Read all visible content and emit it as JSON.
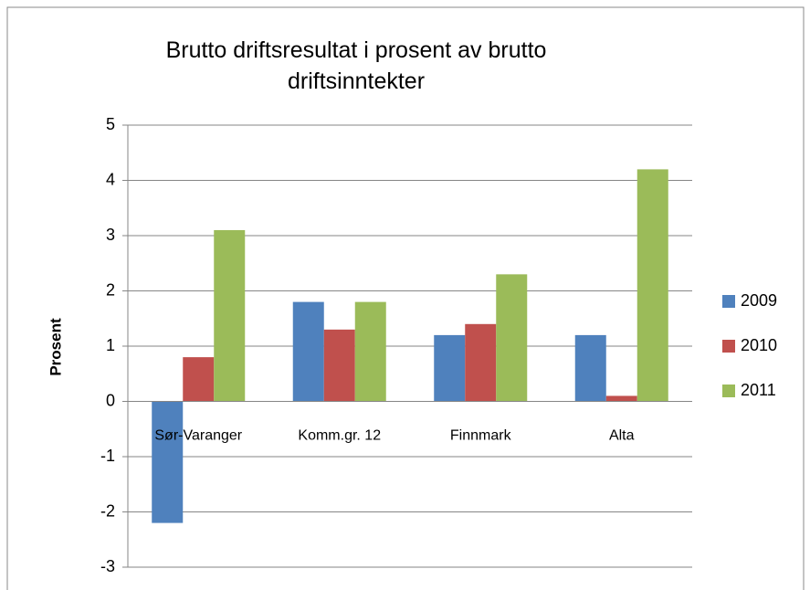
{
  "chart_data": {
    "type": "bar",
    "title": "Brutto driftsresultat i prosent av brutto driftsinntekter",
    "ylabel": "Prosent",
    "categories": [
      "Sør-Varanger",
      "Komm.gr. 12",
      "Finnmark",
      "Alta"
    ],
    "series": [
      {
        "name": "2009",
        "color": "#4f81bd",
        "values": [
          -2.2,
          1.8,
          1.2,
          1.2
        ]
      },
      {
        "name": "2010",
        "color": "#c0504d",
        "values": [
          0.8,
          1.3,
          1.4,
          0.1
        ]
      },
      {
        "name": "2011",
        "color": "#9bbb59",
        "values": [
          3.1,
          1.8,
          2.3,
          4.2
        ]
      }
    ],
    "ylim": [
      -3,
      5
    ],
    "yticks": [
      -3,
      -2,
      -1,
      0,
      1,
      2,
      3,
      4,
      5
    ],
    "grid": true,
    "legend": "right"
  }
}
